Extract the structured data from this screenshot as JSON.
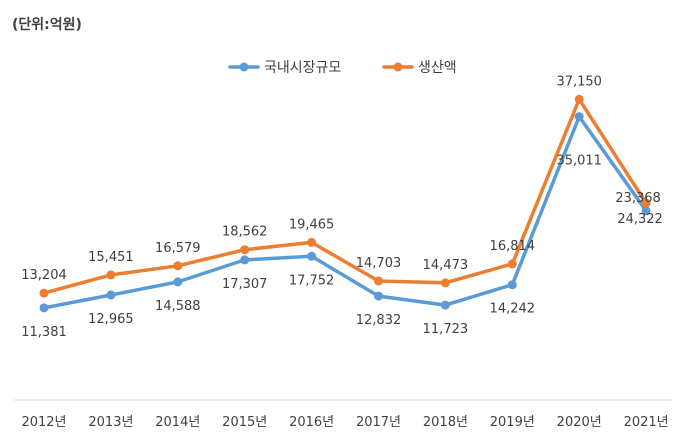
{
  "unit_note": "(단위:억원)",
  "chart_data": {
    "type": "line",
    "title": "",
    "xlabel": "",
    "ylabel": "",
    "categories": [
      "2012년",
      "2013년",
      "2014년",
      "2015년",
      "2016년",
      "2017년",
      "2018년",
      "2019년",
      "2020년",
      "2021년"
    ],
    "series": [
      {
        "name": "국내시장규모",
        "color": "#5B9BD5",
        "values": [
          11381,
          12965,
          14588,
          17307,
          17752,
          12832,
          11723,
          14242,
          35011,
          23368
        ],
        "labels": [
          "11,381",
          "12,965",
          "14,588",
          "17,307",
          "17,752",
          "12,832",
          "11,723",
          "14,242",
          "35,011",
          "23,368"
        ]
      },
      {
        "name": "생산액",
        "color": "#ED7D31",
        "values": [
          13204,
          15451,
          16579,
          18562,
          19465,
          14703,
          14473,
          16814,
          37150,
          24322
        ],
        "labels": [
          "13,204",
          "15,451",
          "16,579",
          "18,562",
          "19,465",
          "14,703",
          "14,473",
          "16,814",
          "37,150",
          "24,322"
        ]
      }
    ],
    "ylim": [
      0,
      42000
    ],
    "grid": false,
    "legend": "top-center"
  }
}
